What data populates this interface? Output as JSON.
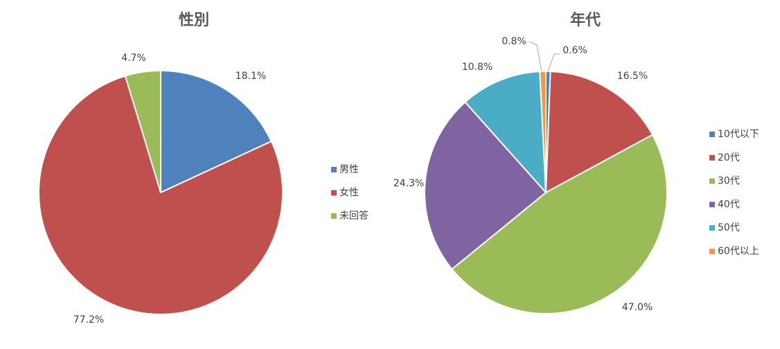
{
  "chart_data": [
    {
      "type": "pie",
      "title": "性別",
      "categories": [
        "男性",
        "女性",
        "未回答"
      ],
      "values": [
        18.1,
        77.2,
        4.7
      ],
      "value_labels": [
        "18.1%",
        "77.2%",
        "4.7%"
      ],
      "colors": [
        "#4f81bd",
        "#c0504d",
        "#9bbb59"
      ],
      "legend": "right"
    },
    {
      "type": "pie",
      "title": "年代",
      "categories": [
        "10代以下",
        "20代",
        "30代",
        "40代",
        "50代",
        "60代以上"
      ],
      "values": [
        0.6,
        16.5,
        47.0,
        24.3,
        10.8,
        0.8
      ],
      "value_labels": [
        "0.6%",
        "16.5%",
        "47.0%",
        "24.3%",
        "10.8%",
        "0.8%"
      ],
      "colors": [
        "#4f81bd",
        "#c0504d",
        "#9bbb59",
        "#8064a2",
        "#4bacc6",
        "#f79646"
      ],
      "legend": "right"
    }
  ]
}
